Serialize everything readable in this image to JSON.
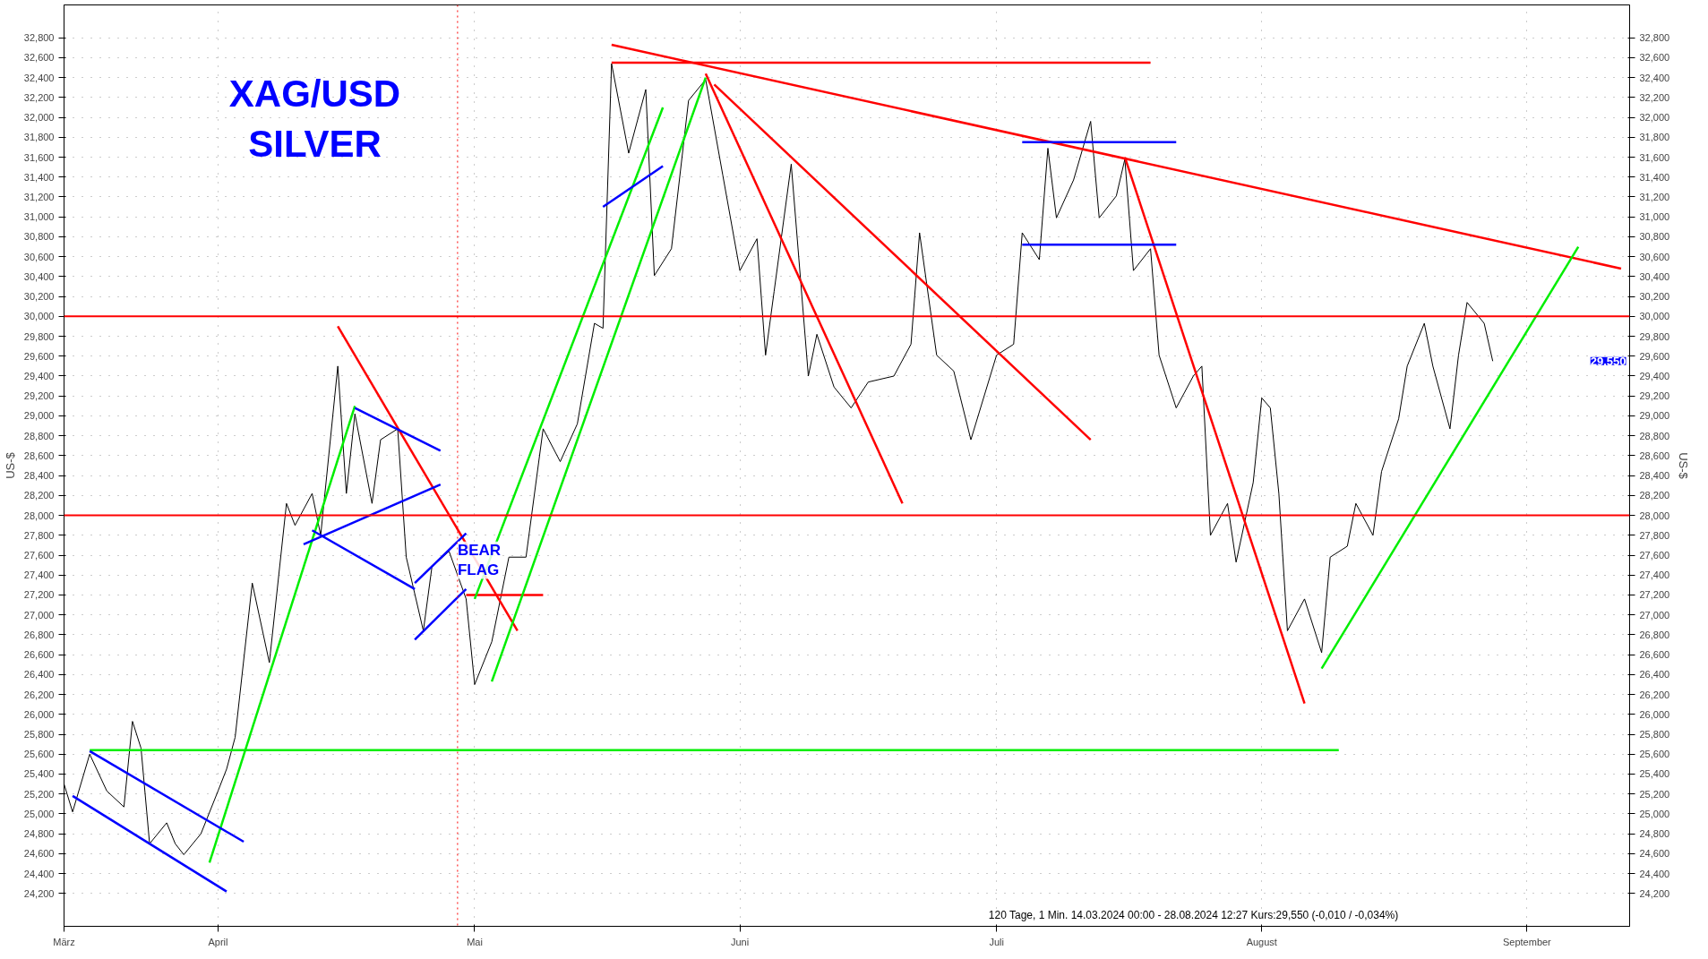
{
  "chart_data": {
    "type": "line",
    "title": "XAG/USD\nSILVER",
    "ylabel": "US-$",
    "y2label": "US-$",
    "xlim": [
      "2024-03-14",
      "2024-09-13"
    ],
    "xticks": [
      {
        "value": "2024-03-14",
        "label": "März"
      },
      {
        "value": "2024-04-01",
        "label": "April"
      },
      {
        "value": "2024-05-01",
        "label": "Mai"
      },
      {
        "value": "2024-06-01",
        "label": "Juni"
      },
      {
        "value": "2024-07-01",
        "label": "Juli"
      },
      {
        "value": "2024-08-01",
        "label": "August"
      },
      {
        "value": "2024-09-01",
        "label": "September"
      }
    ],
    "ylim": [
      23870,
      33130
    ],
    "yticks": [
      {
        "value": 24200,
        "label": "24,200"
      },
      {
        "value": 24400,
        "label": "24,400"
      },
      {
        "value": 24600,
        "label": "24,600"
      },
      {
        "value": 24800,
        "label": "24,800"
      },
      {
        "value": 25000,
        "label": "25,000"
      },
      {
        "value": 25200,
        "label": "25,200"
      },
      {
        "value": 25400,
        "label": "25,400"
      },
      {
        "value": 25600,
        "label": "25,600"
      },
      {
        "value": 25800,
        "label": "25,800"
      },
      {
        "value": 26000,
        "label": "26,000"
      },
      {
        "value": 26200,
        "label": "26,200"
      },
      {
        "value": 26400,
        "label": "26,400"
      },
      {
        "value": 26600,
        "label": "26,600"
      },
      {
        "value": 26800,
        "label": "26,800"
      },
      {
        "value": 27000,
        "label": "27,000"
      },
      {
        "value": 27200,
        "label": "27,200"
      },
      {
        "value": 27400,
        "label": "27,400"
      },
      {
        "value": 27600,
        "label": "27,600"
      },
      {
        "value": 27800,
        "label": "27,800"
      },
      {
        "value": 28000,
        "label": "28,000"
      },
      {
        "value": 28200,
        "label": "28,200"
      },
      {
        "value": 28400,
        "label": "28,400"
      },
      {
        "value": 28600,
        "label": "28,600"
      },
      {
        "value": 28800,
        "label": "28,800"
      },
      {
        "value": 29000,
        "label": "29,000"
      },
      {
        "value": 29200,
        "label": "29,200"
      },
      {
        "value": 29400,
        "label": "29,400"
      },
      {
        "value": 29600,
        "label": "29,600"
      },
      {
        "value": 29800,
        "label": "29,800"
      },
      {
        "value": 30000,
        "label": "30,000"
      },
      {
        "value": 30200,
        "label": "30,200"
      },
      {
        "value": 30400,
        "label": "30,400"
      },
      {
        "value": 30600,
        "label": "30,600"
      },
      {
        "value": 30800,
        "label": "30,800"
      },
      {
        "value": 31000,
        "label": "31,000"
      },
      {
        "value": 31200,
        "label": "31,200"
      },
      {
        "value": 31400,
        "label": "31,400"
      },
      {
        "value": 31600,
        "label": "31,600"
      },
      {
        "value": 31800,
        "label": "31,800"
      },
      {
        "value": 32000,
        "label": "32,000"
      },
      {
        "value": 32200,
        "label": "32,200"
      },
      {
        "value": 32400,
        "label": "32,400"
      },
      {
        "value": 32600,
        "label": "32,600"
      },
      {
        "value": 32800,
        "label": "32,800"
      }
    ],
    "y2lim": [
      23870,
      33130
    ],
    "y2ticks": [
      {
        "value": 24200,
        "label": "24,200"
      },
      {
        "value": 24400,
        "label": "24,400"
      },
      {
        "value": 24600,
        "label": "24,600"
      },
      {
        "value": 24800,
        "label": "24,800"
      },
      {
        "value": 25000,
        "label": "25,000"
      },
      {
        "value": 25200,
        "label": "25,200"
      },
      {
        "value": 25400,
        "label": "25,400"
      },
      {
        "value": 25600,
        "label": "25,600"
      },
      {
        "value": 25800,
        "label": "25,800"
      },
      {
        "value": 26000,
        "label": "26,000"
      },
      {
        "value": 26200,
        "label": "26,200"
      },
      {
        "value": 26400,
        "label": "26,400"
      },
      {
        "value": 26600,
        "label": "26,600"
      },
      {
        "value": 26800,
        "label": "26,800"
      },
      {
        "value": 27000,
        "label": "27,000"
      },
      {
        "value": 27200,
        "label": "27,200"
      },
      {
        "value": 27400,
        "label": "27,400"
      },
      {
        "value": 27600,
        "label": "27,600"
      },
      {
        "value": 27800,
        "label": "27,800"
      },
      {
        "value": 28000,
        "label": "28,000"
      },
      {
        "value": 28200,
        "label": "28,200"
      },
      {
        "value": 28400,
        "label": "28,400"
      },
      {
        "value": 28600,
        "label": "28,600"
      },
      {
        "value": 28800,
        "label": "28,800"
      },
      {
        "value": 29000,
        "label": "29,000"
      },
      {
        "value": 29200,
        "label": "29,200"
      },
      {
        "value": 29400,
        "label": "29,400"
      },
      {
        "value": 29600,
        "label": "29,600"
      },
      {
        "value": 29800,
        "label": "29,800"
      },
      {
        "value": 30000,
        "label": "30,000"
      },
      {
        "value": 30200,
        "label": "30,200"
      },
      {
        "value": 30400,
        "label": "30,400"
      },
      {
        "value": 30600,
        "label": "30,600"
      },
      {
        "value": 30800,
        "label": "30,800"
      },
      {
        "value": 31000,
        "label": "31,000"
      },
      {
        "value": 31200,
        "label": "31,200"
      },
      {
        "value": 31400,
        "label": "31,400"
      },
      {
        "value": 31600,
        "label": "31,600"
      },
      {
        "value": 31800,
        "label": "31,800"
      },
      {
        "value": 32000,
        "label": "32,000"
      },
      {
        "value": 32200,
        "label": "32,200"
      },
      {
        "value": 32400,
        "label": "32,400"
      },
      {
        "value": 32600,
        "label": "32,600"
      },
      {
        "value": 32800,
        "label": "32,800"
      }
    ],
    "grid": true,
    "series": [
      {
        "color": "#000000",
        "x": [
          "2024-03-14",
          "2024-03-15",
          "2024-03-17",
          "2024-03-19",
          "2024-03-21",
          "2024-03-22",
          "2024-03-23",
          "2024-03-24",
          "2024-03-26",
          "2024-03-27",
          "2024-03-28",
          "2024-03-30",
          "2024-04-01",
          "2024-04-02",
          "2024-04-03",
          "2024-04-05",
          "2024-04-07",
          "2024-04-09",
          "2024-04-10",
          "2024-04-12",
          "2024-04-13",
          "2024-04-15",
          "2024-04-16",
          "2024-04-17",
          "2024-04-19",
          "2024-04-20",
          "2024-04-22",
          "2024-04-23",
          "2024-04-25",
          "2024-04-26",
          "2024-04-28",
          "2024-04-30",
          "2024-05-01",
          "2024-05-03",
          "2024-05-05",
          "2024-05-07",
          "2024-05-09",
          "2024-05-11",
          "2024-05-13",
          "2024-05-15",
          "2024-05-16",
          "2024-05-17",
          "2024-05-19",
          "2024-05-21",
          "2024-05-22",
          "2024-05-24",
          "2024-05-26",
          "2024-05-28",
          "2024-05-30",
          "2024-06-01",
          "2024-06-03",
          "2024-06-04",
          "2024-06-05",
          "2024-06-07",
          "2024-06-09",
          "2024-06-10",
          "2024-06-12",
          "2024-06-14",
          "2024-06-16",
          "2024-06-19",
          "2024-06-21",
          "2024-06-22",
          "2024-06-24",
          "2024-06-26",
          "2024-06-28",
          "2024-07-01",
          "2024-07-03",
          "2024-07-04",
          "2024-07-06",
          "2024-07-07",
          "2024-07-08",
          "2024-07-10",
          "2024-07-12",
          "2024-07-13",
          "2024-07-15",
          "2024-07-16",
          "2024-07-17",
          "2024-07-19",
          "2024-07-20",
          "2024-07-22",
          "2024-07-24",
          "2024-07-25",
          "2024-07-26",
          "2024-07-28",
          "2024-07-29",
          "2024-07-31",
          "2024-08-01",
          "2024-08-02",
          "2024-08-03",
          "2024-08-04",
          "2024-08-06",
          "2024-08-08",
          "2024-08-09",
          "2024-08-11",
          "2024-08-12",
          "2024-08-14",
          "2024-08-15",
          "2024-08-17",
          "2024-08-18",
          "2024-08-20",
          "2024-08-21",
          "2024-08-23",
          "2024-08-24",
          "2024-08-25",
          "2024-08-27",
          "2024-08-28"
        ],
        "values": [
          25300,
          25020,
          25600,
          25230,
          25070,
          25930,
          25660,
          24700,
          24910,
          24700,
          24590,
          24800,
          25230,
          25450,
          25770,
          27320,
          26520,
          28120,
          27900,
          28220,
          27800,
          29500,
          28220,
          29020,
          28120,
          28760,
          28870,
          27580,
          26840,
          27480,
          27640,
          27160,
          26300,
          26730,
          27580,
          27580,
          28870,
          28540,
          28920,
          29930,
          29880,
          32540,
          31640,
          32280,
          30410,
          30680,
          32170,
          32380,
          31420,
          30460,
          30780,
          29610,
          30250,
          31530,
          29400,
          29820,
          29290,
          29080,
          29340,
          29400,
          29720,
          30840,
          29610,
          29450,
          28760,
          29610,
          29720,
          30840,
          30570,
          31690,
          30990,
          31370,
          31960,
          30990,
          31210,
          31580,
          30460,
          30680,
          29610,
          29080,
          29400,
          29500,
          27800,
          28120,
          27530,
          28330,
          29180,
          29080,
          28220,
          26840,
          27160,
          26620,
          27580,
          27690,
          28120,
          27800,
          28440,
          28970,
          29500,
          29930,
          29500,
          28870,
          29610,
          30140,
          29930,
          29550
        ]
      },
      {
        "color": "#ff0000",
        "x": [
          "2024-05-17",
          "2024-09-12"
        ],
        "values": [
          32730,
          30480
        ]
      },
      {
        "color": "#ff0000",
        "x": [
          "2024-05-17",
          "2024-07-19"
        ],
        "values": [
          32550,
          32550
        ]
      },
      {
        "color": "#ff0000",
        "x": [
          "2024-04-15",
          "2024-05-06"
        ],
        "values": [
          29900,
          26840
        ]
      },
      {
        "color": "#ff0000",
        "x": [
          "2024-04-30",
          "2024-05-09"
        ],
        "values": [
          27200,
          27200
        ]
      },
      {
        "color": "#ff0000",
        "x": [
          "2024-05-28",
          "2024-06-20"
        ],
        "values": [
          32440,
          28120
        ]
      },
      {
        "color": "#ff0000",
        "x": [
          "2024-05-29",
          "2024-07-12"
        ],
        "values": [
          32330,
          28760
        ]
      },
      {
        "color": "#ff0000",
        "x": [
          "2024-07-16",
          "2024-08-06"
        ],
        "values": [
          31600,
          26110
        ]
      },
      {
        "color": "#00ee00",
        "x": [
          "2024-03-17",
          "2024-08-10"
        ],
        "values": [
          25640,
          25640
        ]
      },
      {
        "color": "#00ee00",
        "x": [
          "2024-03-31",
          "2024-04-17"
        ],
        "values": [
          24510,
          29100
        ]
      },
      {
        "color": "#00ee00",
        "x": [
          "2024-05-01",
          "2024-05-23"
        ],
        "values": [
          27160,
          32100
        ]
      },
      {
        "color": "#00ee00",
        "x": [
          "2024-05-03",
          "2024-05-28"
        ],
        "values": [
          26330,
          32400
        ]
      },
      {
        "color": "#00ee00",
        "x": [
          "2024-08-08",
          "2024-09-07"
        ],
        "values": [
          26460,
          30700
        ]
      },
      {
        "color": "#0000ff",
        "x": [
          "2024-03-17",
          "2024-04-04"
        ],
        "values": [
          25630,
          24720
        ]
      },
      {
        "color": "#0000ff",
        "x": [
          "2024-03-15",
          "2024-04-02"
        ],
        "values": [
          25180,
          24220
        ]
      },
      {
        "color": "#0000ff",
        "x": [
          "2024-04-17",
          "2024-04-27"
        ],
        "values": [
          29080,
          28650
        ]
      },
      {
        "color": "#0000ff",
        "x": [
          "2024-04-11",
          "2024-04-27"
        ],
        "values": [
          27710,
          28310
        ]
      },
      {
        "color": "#0000ff",
        "x": [
          "2024-04-12",
          "2024-04-24"
        ],
        "values": [
          27850,
          27260
        ]
      },
      {
        "color": "#0000ff",
        "x": [
          "2024-04-24",
          "2024-04-30"
        ],
        "values": [
          27320,
          27820
        ]
      },
      {
        "color": "#0000ff",
        "x": [
          "2024-04-24",
          "2024-04-30"
        ],
        "values": [
          26750,
          27260
        ]
      },
      {
        "color": "#0000ff",
        "x": [
          "2024-05-16",
          "2024-05-23"
        ],
        "values": [
          31100,
          31510
        ]
      },
      {
        "color": "#0000ff",
        "x": [
          "2024-07-04",
          "2024-07-22"
        ],
        "values": [
          31750,
          31750
        ]
      },
      {
        "color": "#0000ff",
        "x": [
          "2024-07-04",
          "2024-07-22"
        ],
        "values": [
          30720,
          30720
        ]
      }
    ],
    "ref_lines": [
      {
        "axis": "y",
        "value": 30000,
        "color": "#ff0000"
      },
      {
        "axis": "y",
        "value": 28000,
        "color": "#ff0000"
      },
      {
        "axis": "x",
        "value": "2024-04-29",
        "color": "#ff0000",
        "line_style": "dotted"
      }
    ],
    "annotations": [
      {
        "text": "BEAR\nFLAG",
        "x": "2024-04-29",
        "y": 27550
      },
      "29,550",
      "120 Tage, 1 Min. 14.03.2024 00:00 - 28.08.2024 12:27 Kurs:29,550 (-0,010 / -0,034%)"
    ]
  }
}
